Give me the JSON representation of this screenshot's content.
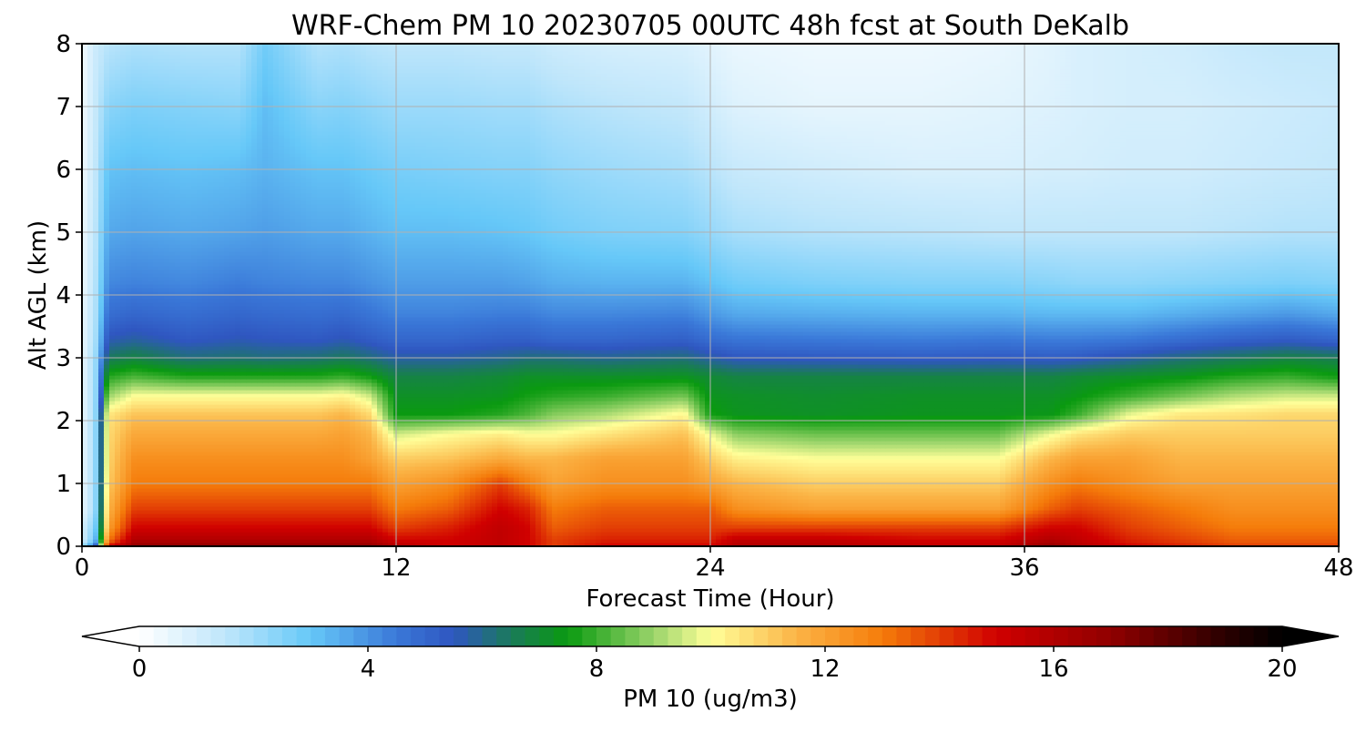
{
  "chart_data": {
    "type": "heatmap",
    "title": "WRF-Chem PM 10  20230705 00UTC 48h fcst at South DeKalb",
    "xlabel": "Forecast Time (Hour)",
    "ylabel": "Alt AGL (km)",
    "xlim": [
      0,
      48
    ],
    "ylim": [
      0,
      8
    ],
    "xticks": [
      0,
      12,
      24,
      36,
      48
    ],
    "yticks": [
      0,
      1,
      2,
      3,
      4,
      5,
      6,
      7,
      8
    ],
    "grid": true,
    "z_hours": [
      0,
      0.5,
      1,
      2,
      4,
      6,
      7,
      9,
      10,
      11,
      12,
      14,
      16,
      17,
      18,
      20,
      23,
      24,
      25,
      28,
      32,
      35,
      37,
      38,
      40,
      42,
      44,
      46,
      48
    ],
    "z_levels_km": [
      0,
      0.1,
      0.3,
      0.6,
      1.0,
      1.4,
      1.8,
      2.1,
      2.4,
      2.7,
      3.0,
      3.3,
      3.7,
      4.2,
      5.0,
      6.0,
      7.0,
      8.0
    ],
    "values": [
      [
        2,
        5,
        15,
        17,
        17,
        17,
        17,
        17,
        17,
        17,
        16,
        15,
        15.5,
        15,
        14,
        15,
        15,
        15,
        16,
        16,
        15.5,
        15.5,
        17,
        16,
        15,
        14.5,
        14,
        14,
        14
      ],
      [
        1,
        3,
        13,
        16,
        16,
        16,
        16,
        16,
        16,
        16,
        15,
        15,
        15.5,
        15,
        14,
        14.5,
        14.5,
        14.5,
        15.5,
        15.5,
        15,
        15,
        16,
        15.5,
        14.5,
        14,
        13.5,
        13.5,
        13.5
      ],
      [
        1,
        2.5,
        12,
        15,
        15,
        15,
        15,
        15,
        15,
        15,
        14,
        14.5,
        15.5,
        15,
        13.5,
        14,
        14,
        14,
        14,
        14,
        14,
        14,
        15,
        15,
        14,
        13.5,
        13,
        13,
        13
      ],
      [
        0.5,
        2,
        11.5,
        14,
        14,
        14,
        14,
        14,
        14,
        14,
        13,
        13.5,
        15,
        14.5,
        13,
        13.5,
        13.5,
        13.5,
        12.5,
        12,
        12,
        12,
        13.5,
        14,
        13.5,
        13,
        12.5,
        12.5,
        12.5
      ],
      [
        0.5,
        2,
        11,
        13,
        13,
        13,
        13,
        13,
        13,
        13,
        12,
        12.5,
        14,
        13,
        12,
        12.5,
        12.5,
        12,
        11.5,
        11,
        11,
        11,
        12.5,
        13,
        12.5,
        12,
        12,
        12,
        12
      ],
      [
        0.5,
        2,
        10.8,
        12.5,
        12.5,
        12.5,
        12.5,
        12.5,
        12.5,
        12,
        11,
        11.2,
        11.8,
        11.5,
        11.5,
        12,
        12,
        11,
        10.3,
        10,
        10,
        10,
        11.5,
        12,
        12,
        11.5,
        11.5,
        11.5,
        11.5
      ],
      [
        0.5,
        2,
        10.7,
        11.8,
        11.8,
        11.8,
        11.8,
        11.8,
        12,
        11.5,
        9.5,
        10,
        10.3,
        10,
        10,
        10.5,
        11.2,
        9.8,
        8.8,
        8.5,
        8.5,
        8.5,
        9.8,
        10.5,
        11,
        11,
        11,
        11,
        11
      ],
      [
        0.5,
        2,
        10.5,
        11.2,
        11.2,
        11.2,
        11.2,
        11.2,
        11.5,
        10.8,
        7.5,
        7.5,
        7.8,
        8.2,
        8.8,
        9.2,
        10.2,
        7.6,
        7.3,
        7.2,
        7.3,
        7.3,
        7.4,
        8,
        9.8,
        10.5,
        10.6,
        10.8,
        10.8
      ],
      [
        0.5,
        2,
        9,
        10,
        10,
        10,
        10,
        10,
        10.2,
        9.5,
        7.2,
        7.2,
        7.3,
        7.6,
        7.8,
        8,
        8.6,
        7.3,
        7.2,
        7.1,
        7.2,
        7.2,
        7.2,
        7.4,
        8,
        8.6,
        9.2,
        9.5,
        9.5
      ],
      [
        0.5,
        2,
        7.8,
        8.2,
        7.8,
        7.8,
        7.8,
        7.8,
        8,
        7.6,
        6.8,
        6.8,
        7,
        7.2,
        7.2,
        7.2,
        7.3,
        7,
        6.8,
        6.8,
        6.8,
        6.8,
        6.8,
        7,
        7.2,
        7.4,
        7.8,
        8,
        7.6
      ],
      [
        0.5,
        2,
        6.5,
        6.8,
        6.2,
        6.3,
        6.2,
        6.3,
        6.5,
        6.2,
        5.8,
        5.8,
        6,
        6.2,
        6.2,
        6,
        6.2,
        5.8,
        5.5,
        5.4,
        5.3,
        5.4,
        5.3,
        5.4,
        5.8,
        6.2,
        6.5,
        6.8,
        6.6
      ],
      [
        0.5,
        1.8,
        5.6,
        5.8,
        5.4,
        5.6,
        5.5,
        5.4,
        5.6,
        5.3,
        5,
        5,
        5.2,
        5.2,
        5,
        5,
        5.2,
        4.8,
        4.6,
        4.5,
        4.4,
        4.5,
        4.4,
        4.4,
        4.5,
        4.8,
        5.1,
        5.3,
        5
      ],
      [
        0.5,
        1.7,
        4.8,
        5,
        4.8,
        5,
        4.9,
        4.8,
        4.9,
        4.6,
        4.3,
        4.3,
        4.4,
        4.4,
        4.2,
        4.2,
        4.3,
        3.9,
        3.6,
        3.5,
        3.4,
        3.4,
        3.3,
        3.3,
        3.3,
        3.5,
        3.7,
        3.9,
        3.6
      ],
      [
        0.4,
        1.6,
        4.2,
        4.3,
        4.2,
        4.4,
        4.3,
        4.2,
        4.2,
        4,
        3.8,
        3.8,
        3.8,
        3.7,
        3.5,
        3.4,
        3.4,
        3.1,
        2.8,
        2.6,
        2.5,
        2.5,
        2.4,
        2.3,
        2.3,
        2.4,
        2.5,
        2.6,
        2.5
      ],
      [
        0.4,
        1.5,
        3.6,
        3.7,
        3.6,
        3.7,
        3.8,
        3.6,
        3.6,
        3.4,
        3.2,
        3.2,
        3.1,
        3,
        2.8,
        2.6,
        2.5,
        2.2,
        1.9,
        1.7,
        1.6,
        1.5,
        1.5,
        1.5,
        1.5,
        1.5,
        1.6,
        1.7,
        1.7
      ],
      [
        0.3,
        1.4,
        3.1,
        3.2,
        3.1,
        3.2,
        3.4,
        3.1,
        3.1,
        2.9,
        2.7,
        2.6,
        2.5,
        2.5,
        2.3,
        2.1,
        1.9,
        1.6,
        1.3,
        1.1,
        0.9,
        0.9,
        1,
        1,
        1.1,
        1.1,
        1.2,
        1.3,
        1.4
      ],
      [
        0.3,
        1.3,
        2.4,
        2.6,
        2.5,
        2.4,
        3.2,
        2.4,
        2.5,
        2.3,
        2.1,
        2.1,
        2,
        2,
        1.8,
        1.6,
        1.4,
        1.1,
        0.8,
        0.6,
        0.6,
        0.7,
        0.8,
        0.9,
        1,
        1,
        1.1,
        1.2,
        1.3
      ],
      [
        0.3,
        1.2,
        1.6,
        1.8,
        1.7,
        1.7,
        2.8,
        1.7,
        1.8,
        1.6,
        1.5,
        1.5,
        1.4,
        1.4,
        1.2,
        1,
        0.9,
        0.7,
        0.5,
        0.4,
        0.4,
        0.5,
        0.7,
        0.9,
        1,
        1.1,
        1.3,
        1.4,
        1.4
      ]
    ],
    "colorbar": {
      "label": "PM 10  (ug/m3)",
      "ticks": [
        0,
        4,
        8,
        12,
        16,
        20
      ],
      "vmin": 0,
      "vmax": 20,
      "extend": "both",
      "stops": [
        {
          "v": 0,
          "c": "#ffffff"
        },
        {
          "v": 1.5,
          "c": "#bfe6fb"
        },
        {
          "v": 3,
          "c": "#66c8f8"
        },
        {
          "v": 4.5,
          "c": "#3a78d8"
        },
        {
          "v": 5.5,
          "c": "#2f56c0"
        },
        {
          "v": 6.5,
          "c": "#1a7a5a"
        },
        {
          "v": 7.5,
          "c": "#0a9a10"
        },
        {
          "v": 9,
          "c": "#9ad46a"
        },
        {
          "v": 10,
          "c": "#ffff99"
        },
        {
          "v": 11.5,
          "c": "#fbb446"
        },
        {
          "v": 13,
          "c": "#f57c0a"
        },
        {
          "v": 15,
          "c": "#d00000"
        },
        {
          "v": 17,
          "c": "#900000"
        },
        {
          "v": 19,
          "c": "#2a0000"
        },
        {
          "v": 20,
          "c": "#000000"
        }
      ]
    }
  }
}
